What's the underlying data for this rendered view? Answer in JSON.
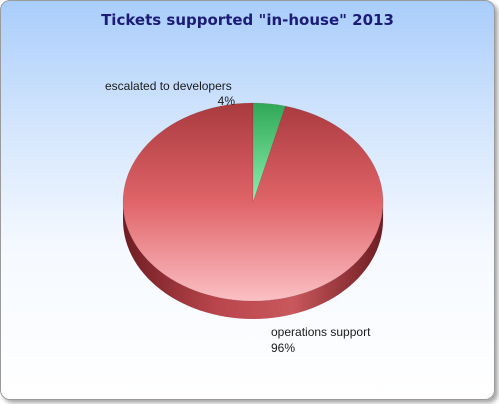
{
  "chart_data": {
    "type": "pie",
    "title": "Tickets supported \"in-house\" 2013",
    "slices": [
      {
        "label": "operations support",
        "percent_label": "96%",
        "value": 96,
        "color": "#e0646a"
      },
      {
        "label": "escalated to developers",
        "percent_label": "4%",
        "value": 4,
        "color": "#4fd07a"
      }
    ],
    "three_d": true,
    "legend": "none"
  }
}
